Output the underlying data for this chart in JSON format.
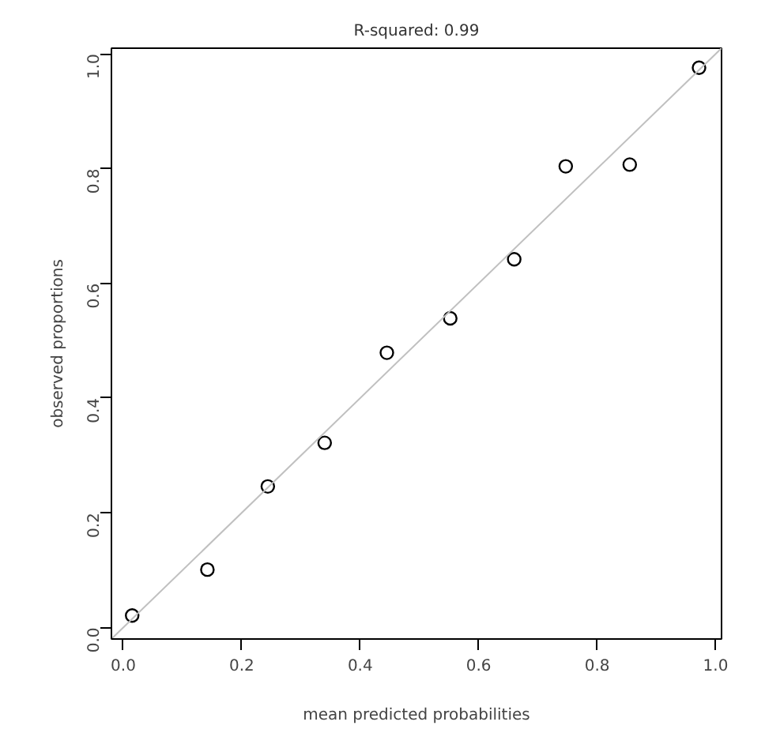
{
  "chart_data": {
    "type": "scatter",
    "title": "R-squared: 0.99",
    "xlabel": "mean predicted probabilities",
    "ylabel": "observed proportions",
    "series": [
      {
        "color": "#000000",
        "marker": "circle",
        "x": [
          0.015,
          0.142,
          0.244,
          0.34,
          0.445,
          0.552,
          0.66,
          0.747,
          0.855,
          0.972
        ],
        "values": [
          0.021,
          0.101,
          0.246,
          0.322,
          0.479,
          0.539,
          0.642,
          0.804,
          0.807,
          0.976
        ]
      },
      {
        "type": "line",
        "color": "#c0c0c0",
        "x": [
          -0.02,
          1.01
        ],
        "values": [
          -0.02,
          1.01
        ]
      }
    ],
    "xlim": [
      -0.02,
      1.01
    ],
    "ylim": [
      -0.02,
      1.01
    ],
    "xticks": [
      {
        "value": 0,
        "label": "0.0"
      },
      0.2,
      0.4,
      0.6,
      0.8,
      {
        "value": 1,
        "label": "1.0"
      }
    ],
    "yticks": [
      {
        "value": 0,
        "label": "0.0"
      },
      0.2,
      0.4,
      0.6,
      0.8,
      {
        "value": 1,
        "label": "1.0"
      }
    ],
    "grid": false
  }
}
